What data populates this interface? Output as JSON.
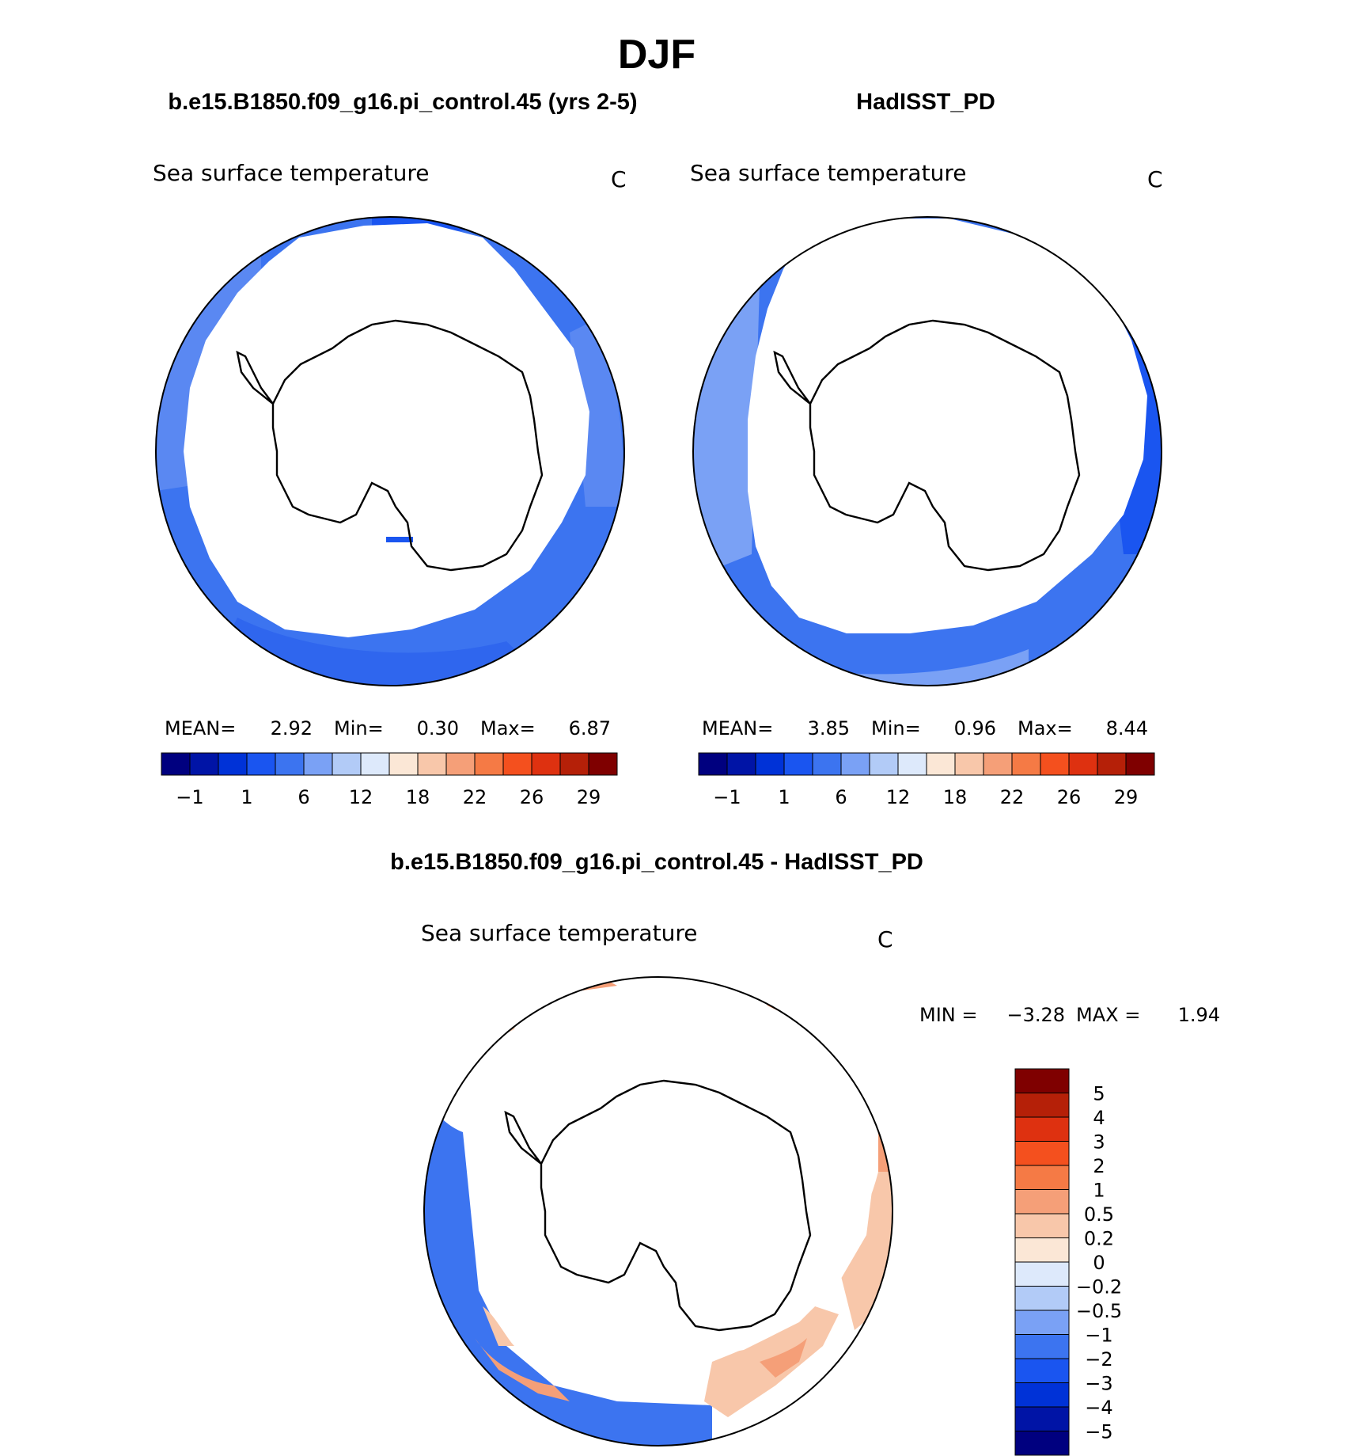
{
  "page_title": "DJF",
  "panels": [
    {
      "case_title": "b.e15.B1850.f09_g16.pi_control.45 (yrs 2-5)",
      "field_label": "Sea surface temperature",
      "units": "C",
      "stats": {
        "mean_label": "MEAN=",
        "mean": "2.92",
        "min_label": "Min=",
        "min": "0.30",
        "max_label": "Max=",
        "max": "6.87"
      }
    },
    {
      "case_title": "HadISST_PD",
      "field_label": "Sea surface temperature",
      "units": "C",
      "stats": {
        "mean_label": "MEAN=",
        "mean": "3.85",
        "min_label": "Min=",
        "min": "0.96",
        "max_label": "Max=",
        "max": "8.44"
      }
    }
  ],
  "sst_colorbar": {
    "colors": [
      "#00007f",
      "#0014a6",
      "#0032d7",
      "#1a55f0",
      "#3c74f0",
      "#7aa1f5",
      "#b2cbf7",
      "#dde9fb",
      "#fbe7d6",
      "#f8c7aa",
      "#f59f78",
      "#f57a45",
      "#f4501e",
      "#de3110",
      "#b52008",
      "#7f0000"
    ],
    "tick_labels": [
      "−1",
      "1",
      "6",
      "12",
      "18",
      "22",
      "26",
      "29"
    ]
  },
  "diff_panel": {
    "title": "b.e15.B1850.f09_g16.pi_control.45 - HadISST_PD",
    "field_label": "Sea surface temperature",
    "units": "C",
    "stats": {
      "min_label": "MIN =",
      "min": "−3.28",
      "max_label": "MAX =",
      "max": "1.94"
    }
  },
  "diff_colorbar": {
    "colors": [
      "#7f0000",
      "#b52008",
      "#de3110",
      "#f4501e",
      "#f57a45",
      "#f59f78",
      "#f8c7aa",
      "#fbe7d6",
      "#dde9fb",
      "#b2cbf7",
      "#7aa1f5",
      "#3c74f0",
      "#1a55f0",
      "#0032d7",
      "#0014a6",
      "#00007f"
    ],
    "tick_labels": [
      "5",
      "4",
      "3",
      "2",
      "1",
      "0.5",
      "0.2",
      "0",
      "−0.2",
      "−0.5",
      "−1",
      "−2",
      "−3",
      "−4",
      "−5"
    ]
  }
}
